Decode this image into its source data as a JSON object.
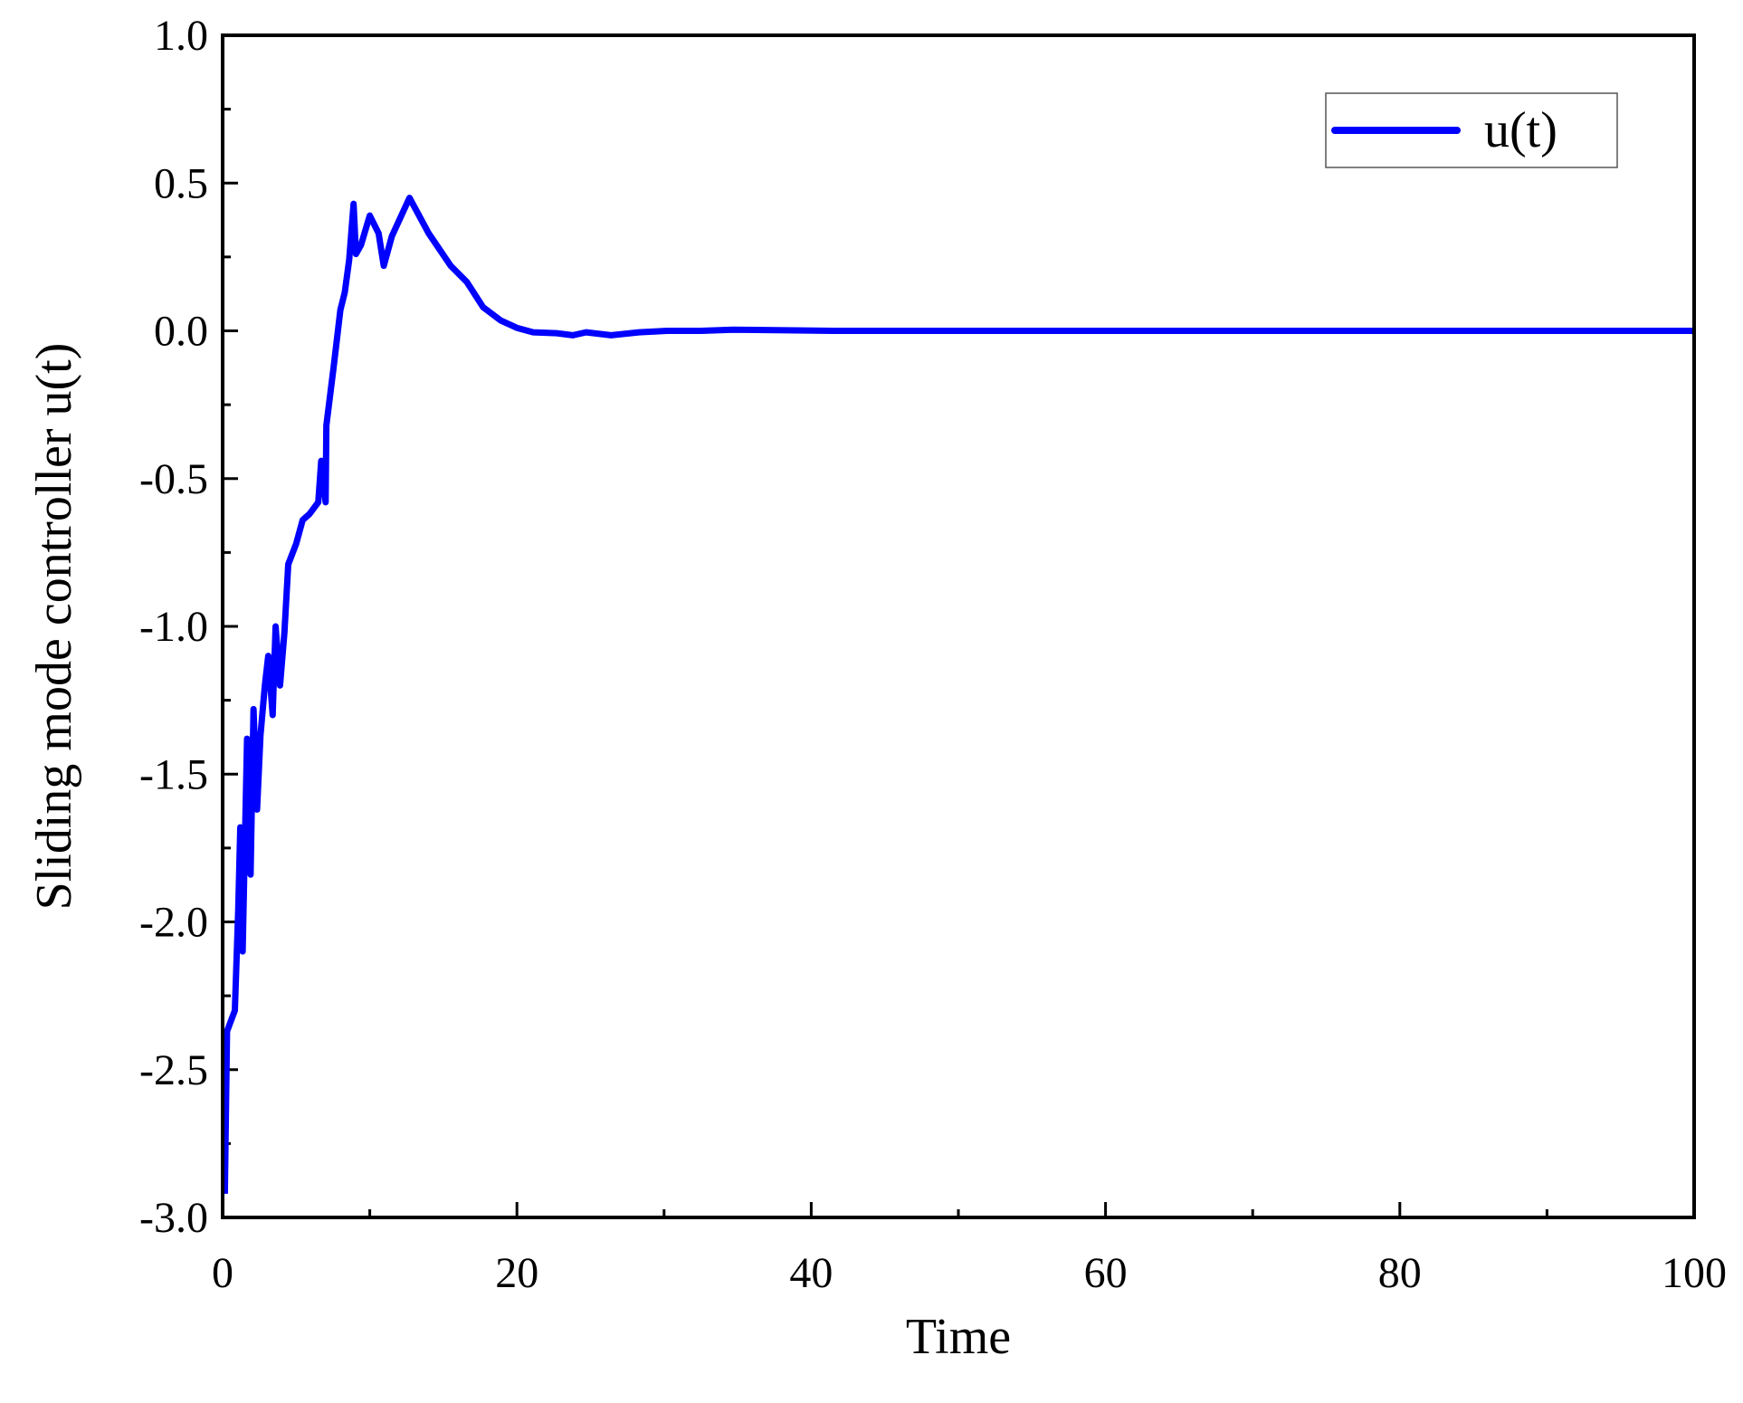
{
  "chart_data": {
    "type": "line",
    "xlabel": "Time",
    "ylabel": "Sliding mode controller u(t)",
    "xlim": [
      0,
      100
    ],
    "xticks": [
      0,
      20,
      40,
      60,
      80,
      100
    ],
    "ylim": [
      -3,
      1
    ],
    "yticks": [
      {
        "value": -3,
        "label": "-3.0"
      },
      {
        "value": -2.5,
        "label": "-2.5"
      },
      {
        "value": -2,
        "label": "-2.0"
      },
      {
        "value": -1.5,
        "label": "-1.5"
      },
      {
        "value": -1,
        "label": "-1.0"
      },
      {
        "value": -0.5,
        "label": "-0.5"
      },
      {
        "value": 0,
        "label": "0.0"
      },
      {
        "value": 0.5,
        "label": "0.5"
      },
      {
        "value": 1,
        "label": "1.0"
      }
    ],
    "legend": "upper right",
    "series": [
      {
        "name": "u(t)",
        "color": "#0000ff",
        "x": [
          0.15,
          0.3,
          0.83,
          1.06,
          1.2,
          1.36,
          1.66,
          1.9,
          2.1,
          2.34,
          2.57,
          2.87,
          3.1,
          3.4,
          3.6,
          3.9,
          4.2,
          4.46,
          5.0,
          5.44,
          5.9,
          6.5,
          6.7,
          7.0,
          7.05,
          7.55,
          8.0,
          8.3,
          8.6,
          8.9,
          9.06,
          9.4,
          10.0,
          10.6,
          10.95,
          11.5,
          12.7,
          14.0,
          15.5,
          16.6,
          17.7,
          18.9,
          20,
          21.1,
          22.7,
          23.8,
          24.7,
          26.4,
          28.3,
          30.2,
          32.5,
          34.7,
          36.2,
          41.5,
          100
        ],
        "values": [
          -2.92,
          -2.37,
          -2.3,
          -1.96,
          -1.68,
          -2.1,
          -1.38,
          -1.84,
          -1.28,
          -1.62,
          -1.37,
          -1.2,
          -1.1,
          -1.3,
          -1.0,
          -1.2,
          -1.02,
          -0.79,
          -0.72,
          -0.64,
          -0.62,
          -0.58,
          -0.44,
          -0.58,
          -0.32,
          -0.12,
          0.07,
          0.13,
          0.24,
          0.43,
          0.26,
          0.29,
          0.39,
          0.33,
          0.22,
          0.32,
          0.45,
          0.33,
          0.22,
          0.165,
          0.08,
          0.035,
          0.01,
          -0.005,
          -0.008,
          -0.015,
          -0.005,
          -0.015,
          -0.005,
          0,
          0,
          0.004,
          0.003,
          0,
          0
        ]
      }
    ]
  }
}
